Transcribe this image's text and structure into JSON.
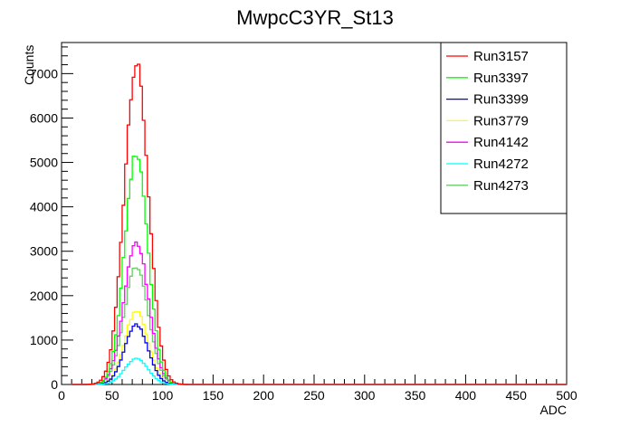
{
  "chart_data": {
    "type": "line",
    "title": "MwpcC3YR_St13",
    "xlabel": "ADC",
    "ylabel": "Counts",
    "xlim": [
      0,
      500
    ],
    "ylim": [
      0,
      7700
    ],
    "x_ticks": [
      "0",
      "50",
      "100",
      "150",
      "200",
      "250",
      "300",
      "350",
      "400",
      "450",
      "500"
    ],
    "y_ticks": [
      "0",
      "1000",
      "2000",
      "3000",
      "4000",
      "5000",
      "6000",
      "7000"
    ],
    "grid": false,
    "legend_position": "top-right",
    "bin_width": 2.5,
    "series": [
      {
        "name": "Run3157",
        "color": "#ff0000",
        "peak_x": 74,
        "peak_y": 7200,
        "sigma": 12
      },
      {
        "name": "Run3397",
        "color": "#00ff00",
        "peak_x": 74,
        "peak_y": 5200,
        "sigma": 11.5
      },
      {
        "name": "Run3399",
        "color": "#0000ff",
        "peak_x": 74,
        "peak_y": 1350,
        "sigma": 11.5
      },
      {
        "name": "Run3779",
        "color": "#ffff00",
        "peak_x": 74,
        "peak_y": 1650,
        "sigma": 11.5
      },
      {
        "name": "Run4142",
        "color": "#ff00ff",
        "peak_x": 74,
        "peak_y": 3200,
        "sigma": 12
      },
      {
        "name": "Run4272",
        "color": "#00ffff",
        "peak_x": 74,
        "peak_y": 580,
        "sigma": 11.5
      },
      {
        "name": "Run4273",
        "color": "#66cc66",
        "peak_x": 74,
        "peak_y": 2650,
        "sigma": 12
      }
    ]
  }
}
